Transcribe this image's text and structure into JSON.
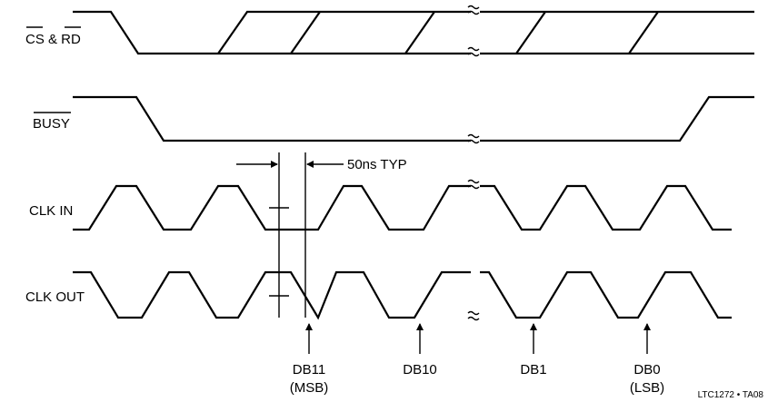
{
  "signals": [
    {
      "label": "CS & RD"
    },
    {
      "label": "BUSY"
    },
    {
      "label": "CLK IN"
    },
    {
      "label": "CLK OUT"
    }
  ],
  "annotation": "50ns TYP",
  "bits": [
    {
      "top": "DB11",
      "bottom": "(MSB)"
    },
    {
      "top": "DB10",
      "bottom": ""
    },
    {
      "top": "DB1",
      "bottom": ""
    },
    {
      "top": "DB0",
      "bottom": "(LSB)"
    }
  ],
  "figure_id": "LTC1272 • TA08"
}
